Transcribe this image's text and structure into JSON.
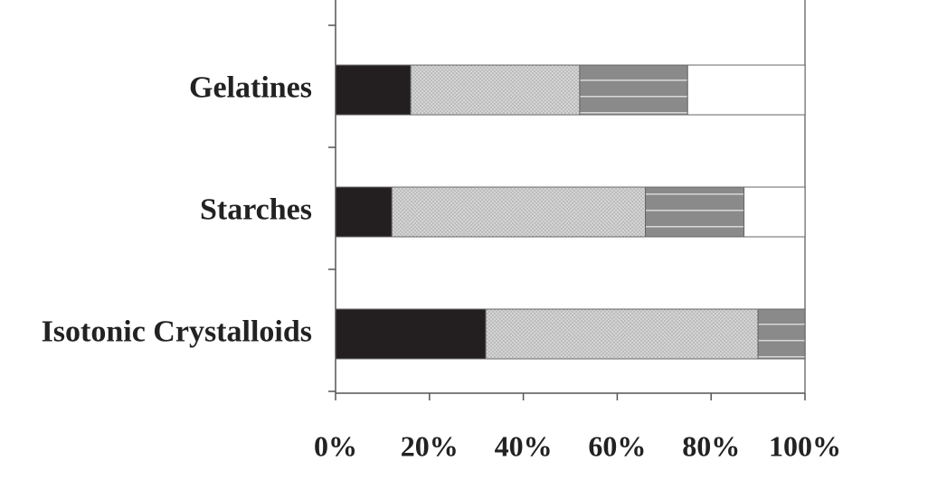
{
  "chart_data": {
    "type": "stacked-bar-horizontal",
    "categories": [
      "Gelatines",
      "Starches",
      "Isotonic Crystalloids"
    ],
    "series": [
      {
        "color": "#231f20",
        "values": [
          16,
          12,
          32
        ]
      },
      {
        "color": "#d4d4d4",
        "values": [
          36,
          54,
          58
        ]
      },
      {
        "color": "#8a8a8a",
        "values": [
          23,
          21,
          10
        ]
      },
      {
        "color": "#ffffff",
        "values": [
          25,
          13,
          0
        ]
      }
    ],
    "xlim": [
      0,
      100
    ],
    "xticks": [
      {
        "value": 0,
        "label": "0%"
      },
      {
        "value": 20,
        "label": "20%"
      },
      {
        "value": 40,
        "label": "40%"
      },
      {
        "value": 60,
        "label": "60%"
      },
      {
        "value": 80,
        "label": "80%"
      },
      {
        "value": 100,
        "label": "100%"
      }
    ]
  }
}
